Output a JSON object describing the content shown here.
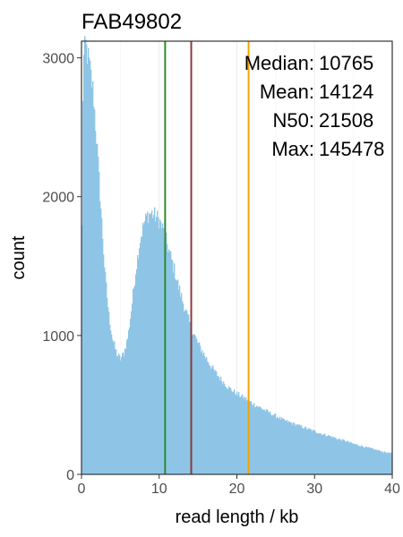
{
  "chart_data": {
    "type": "bar",
    "title": "FAB49802",
    "xlabel": "read length / kb",
    "ylabel": "count",
    "xlim": [
      0,
      40
    ],
    "ylim": [
      0,
      3120
    ],
    "x_ticks": [
      0,
      10,
      20,
      30,
      40
    ],
    "y_ticks": [
      0,
      1000,
      2000,
      3000
    ],
    "grid": true,
    "bar_color": "#8ec5e7",
    "histogram_profile_kb_count": [
      [
        0.0,
        1300
      ],
      [
        0.2,
        2950
      ],
      [
        0.5,
        3100
      ],
      [
        1.0,
        2950
      ],
      [
        1.5,
        2750
      ],
      [
        2.0,
        2350
      ],
      [
        2.5,
        1900
      ],
      [
        3.0,
        1450
      ],
      [
        3.5,
        1150
      ],
      [
        4.0,
        970
      ],
      [
        4.5,
        870
      ],
      [
        5.0,
        830
      ],
      [
        5.5,
        880
      ],
      [
        6.0,
        1000
      ],
      [
        6.5,
        1230
      ],
      [
        7.0,
        1480
      ],
      [
        7.5,
        1680
      ],
      [
        8.0,
        1800
      ],
      [
        8.5,
        1870
      ],
      [
        9.0,
        1880
      ],
      [
        9.5,
        1860
      ],
      [
        10.0,
        1830
      ],
      [
        10.5,
        1760
      ],
      [
        11.0,
        1660
      ],
      [
        11.5,
        1560
      ],
      [
        12.0,
        1460
      ],
      [
        12.5,
        1350
      ],
      [
        13.0,
        1250
      ],
      [
        13.5,
        1160
      ],
      [
        14.0,
        1070
      ],
      [
        15.0,
        940
      ],
      [
        16.0,
        840
      ],
      [
        17.0,
        750
      ],
      [
        18.0,
        680
      ],
      [
        19.0,
        620
      ],
      [
        20.0,
        580
      ],
      [
        21.0,
        550
      ],
      [
        22.0,
        510
      ],
      [
        23.0,
        480
      ],
      [
        24.0,
        450
      ],
      [
        25.0,
        420
      ],
      [
        26.0,
        390
      ],
      [
        27.0,
        370
      ],
      [
        28.0,
        350
      ],
      [
        29.0,
        330
      ],
      [
        30.0,
        310
      ],
      [
        31.0,
        290
      ],
      [
        32.0,
        275
      ],
      [
        33.0,
        255
      ],
      [
        34.0,
        240
      ],
      [
        35.0,
        220
      ],
      [
        36.0,
        205
      ],
      [
        37.0,
        190
      ],
      [
        38.0,
        175
      ],
      [
        39.0,
        160
      ],
      [
        40.0,
        150
      ]
    ],
    "vlines": [
      {
        "name": "Median",
        "x_kb": 10.765,
        "color": "#2e8b2e"
      },
      {
        "name": "Mean",
        "x_kb": 14.124,
        "color": "#8b3a3a"
      },
      {
        "name": "N50",
        "x_kb": 21.508,
        "color": "#f5a300"
      }
    ],
    "stats": [
      {
        "label": "Median:",
        "value": "10765"
      },
      {
        "label": "Mean:",
        "value": "14124"
      },
      {
        "label": "N50:",
        "value": "21508"
      },
      {
        "label": "Max:",
        "value": "145478"
      }
    ]
  }
}
